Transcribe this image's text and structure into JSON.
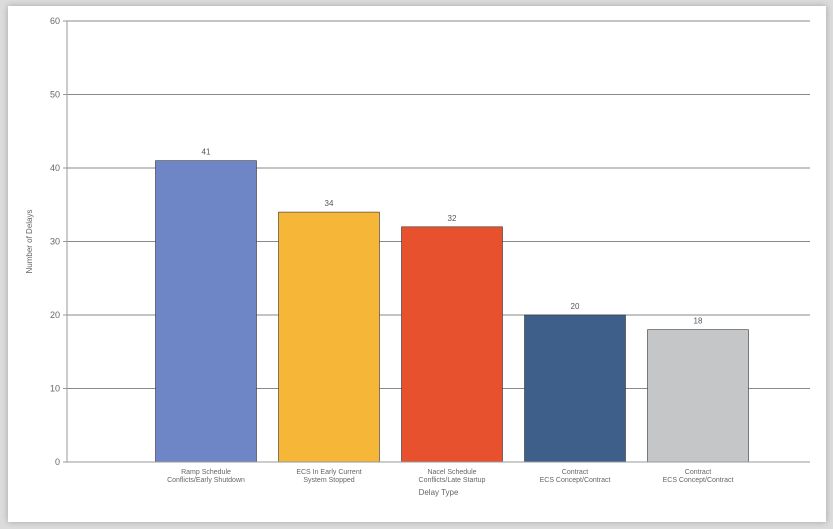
{
  "chart_data": {
    "type": "bar",
    "title": "",
    "xlabel": "Delay Type",
    "ylabel": "Number of Delays",
    "ylim": [
      0,
      60
    ],
    "yticks": [
      0,
      10,
      20,
      30,
      40,
      50,
      60
    ],
    "grid": true,
    "categories": [
      [
        "Ramp Schedule",
        "Conflicts/Early Shutdown"
      ],
      [
        "ECS In Early Current",
        "System Stopped"
      ],
      [
        "Nacel Schedule",
        "Conflicts/Late Startup"
      ],
      [
        "Contract",
        "ECS Concept/Contract"
      ],
      [
        "Contract",
        "ECS Concept/Contract"
      ]
    ],
    "values": [
      41,
      34,
      32,
      20,
      18
    ],
    "value_labels": [
      "41",
      "34",
      "32",
      "20",
      "18"
    ],
    "colors": [
      "#6e86c6",
      "#f6b637",
      "#e8512e",
      "#3d5f8a",
      "#c4c6c8"
    ]
  }
}
